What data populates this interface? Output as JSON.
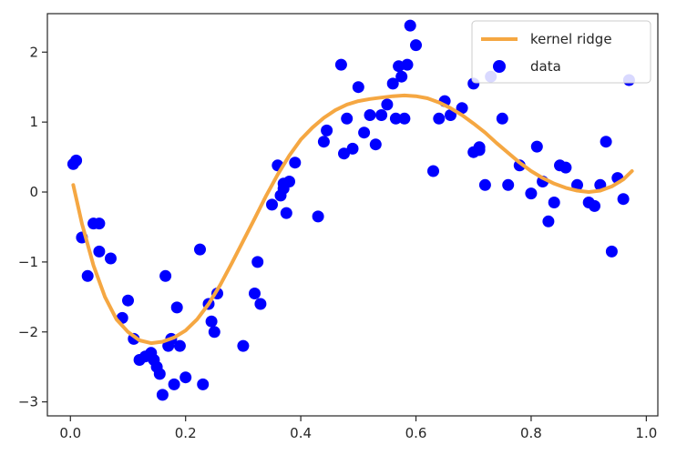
{
  "chart_data": {
    "type": "scatter",
    "title": "",
    "xlabel": "",
    "ylabel": "",
    "xlim": [
      -0.04,
      1.02
    ],
    "ylim": [
      -3.2,
      2.55
    ],
    "xticks": [
      0.0,
      0.2,
      0.4,
      0.6,
      0.8,
      1.0
    ],
    "xtick_labels": [
      "0.0",
      "0.2",
      "0.4",
      "0.6",
      "0.8",
      "1.0"
    ],
    "yticks": [
      -3,
      -2,
      -1,
      0,
      1,
      2
    ],
    "ytick_labels": [
      "−3",
      "−2",
      "−1",
      "0",
      "1",
      "2"
    ],
    "grid": false,
    "legend": {
      "placement": "top-right",
      "entries": [
        "kernel ridge",
        "data"
      ]
    },
    "series": [
      {
        "name": "kernel ridge",
        "kind": "line",
        "color": "#f5a742",
        "x": [
          0.005,
          0.02,
          0.04,
          0.06,
          0.08,
          0.1,
          0.12,
          0.14,
          0.16,
          0.18,
          0.2,
          0.22,
          0.24,
          0.26,
          0.28,
          0.3,
          0.32,
          0.34,
          0.36,
          0.38,
          0.4,
          0.42,
          0.44,
          0.46,
          0.48,
          0.5,
          0.52,
          0.54,
          0.56,
          0.58,
          0.6,
          0.62,
          0.64,
          0.66,
          0.68,
          0.7,
          0.72,
          0.74,
          0.76,
          0.78,
          0.8,
          0.82,
          0.84,
          0.86,
          0.88,
          0.9,
          0.92,
          0.94,
          0.96,
          0.975
        ],
        "y": [
          0.1,
          -0.45,
          -1.05,
          -1.5,
          -1.82,
          -2.0,
          -2.12,
          -2.16,
          -2.14,
          -2.08,
          -1.98,
          -1.82,
          -1.6,
          -1.33,
          -1.02,
          -0.7,
          -0.38,
          -0.05,
          0.25,
          0.52,
          0.75,
          0.92,
          1.06,
          1.17,
          1.25,
          1.3,
          1.33,
          1.35,
          1.37,
          1.38,
          1.37,
          1.34,
          1.28,
          1.2,
          1.1,
          0.98,
          0.85,
          0.7,
          0.56,
          0.42,
          0.3,
          0.2,
          0.12,
          0.06,
          0.02,
          0.0,
          0.02,
          0.08,
          0.18,
          0.3
        ]
      },
      {
        "name": "data",
        "kind": "scatter",
        "color": "#0000ff",
        "x": [
          0.005,
          0.01,
          0.02,
          0.03,
          0.04,
          0.05,
          0.05,
          0.07,
          0.09,
          0.1,
          0.11,
          0.12,
          0.13,
          0.14,
          0.145,
          0.15,
          0.155,
          0.16,
          0.165,
          0.17,
          0.175,
          0.18,
          0.185,
          0.19,
          0.2,
          0.225,
          0.23,
          0.24,
          0.245,
          0.25,
          0.255,
          0.3,
          0.32,
          0.325,
          0.33,
          0.35,
          0.36,
          0.365,
          0.37,
          0.37,
          0.375,
          0.38,
          0.39,
          0.43,
          0.44,
          0.445,
          0.47,
          0.475,
          0.48,
          0.49,
          0.5,
          0.51,
          0.52,
          0.53,
          0.54,
          0.55,
          0.56,
          0.565,
          0.57,
          0.575,
          0.58,
          0.585,
          0.59,
          0.6,
          0.63,
          0.64,
          0.65,
          0.66,
          0.68,
          0.7,
          0.7,
          0.71,
          0.71,
          0.72,
          0.73,
          0.75,
          0.76,
          0.78,
          0.8,
          0.81,
          0.82,
          0.83,
          0.84,
          0.85,
          0.86,
          0.88,
          0.9,
          0.91,
          0.92,
          0.93,
          0.94,
          0.95,
          0.96,
          0.97
        ],
        "y": [
          0.4,
          0.45,
          -0.65,
          -1.2,
          -0.45,
          -0.85,
          -0.45,
          -0.95,
          -1.8,
          -1.55,
          -2.1,
          -2.4,
          -2.35,
          -2.3,
          -2.4,
          -2.5,
          -2.6,
          -2.9,
          -1.2,
          -2.2,
          -2.1,
          -2.75,
          -1.65,
          -2.2,
          -2.65,
          -0.82,
          -2.75,
          -1.6,
          -1.85,
          -2.0,
          -1.45,
          -2.2,
          -1.45,
          -1.0,
          -1.6,
          -0.18,
          0.38,
          -0.05,
          0.05,
          0.12,
          -0.3,
          0.15,
          0.42,
          -0.35,
          0.72,
          0.88,
          1.82,
          0.55,
          1.05,
          0.62,
          1.5,
          0.85,
          1.1,
          0.68,
          1.1,
          1.25,
          1.55,
          1.05,
          1.8,
          1.65,
          1.05,
          1.82,
          2.38,
          2.1,
          0.3,
          1.05,
          1.3,
          1.1,
          1.2,
          1.55,
          0.57,
          0.64,
          0.6,
          0.1,
          1.65,
          1.05,
          0.1,
          0.38,
          -0.02,
          0.65,
          0.15,
          -0.42,
          -0.15,
          0.38,
          0.35,
          0.1,
          -0.15,
          -0.2,
          0.1,
          0.72,
          -0.85,
          0.2,
          -0.1,
          1.6
        ]
      }
    ]
  }
}
